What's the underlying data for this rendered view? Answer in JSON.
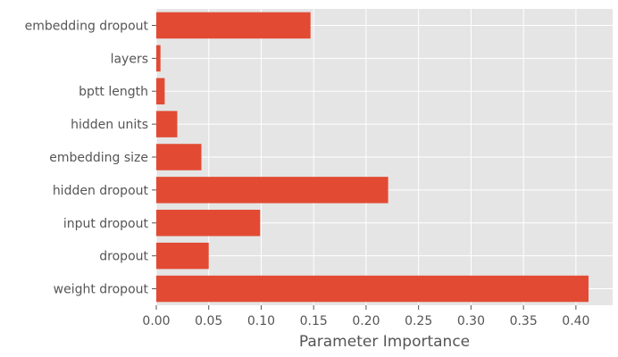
{
  "chart_data": {
    "type": "bar",
    "orientation": "horizontal",
    "title": "",
    "xlabel": "Parameter Importance",
    "ylabel": "",
    "categories": [
      "weight dropout",
      "dropout",
      "input dropout",
      "hidden dropout",
      "embedding size",
      "hidden units",
      "bptt length",
      "layers",
      "embedding dropout"
    ],
    "values": [
      0.412,
      0.05,
      0.099,
      0.221,
      0.043,
      0.02,
      0.008,
      0.004,
      0.147
    ],
    "xlim": [
      0,
      0.435
    ],
    "xticks": [
      0.0,
      0.05,
      0.1,
      0.15,
      0.2,
      0.25,
      0.3,
      0.35,
      0.4
    ],
    "xtick_labels": [
      "0.00",
      "0.05",
      "0.10",
      "0.15",
      "0.20",
      "0.25",
      "0.30",
      "0.35",
      "0.40"
    ],
    "grid": true,
    "bar_color": "#E24A33",
    "background_color": "#E5E5E5",
    "grid_color": "#FFFFFF",
    "text_color": "#555555"
  }
}
